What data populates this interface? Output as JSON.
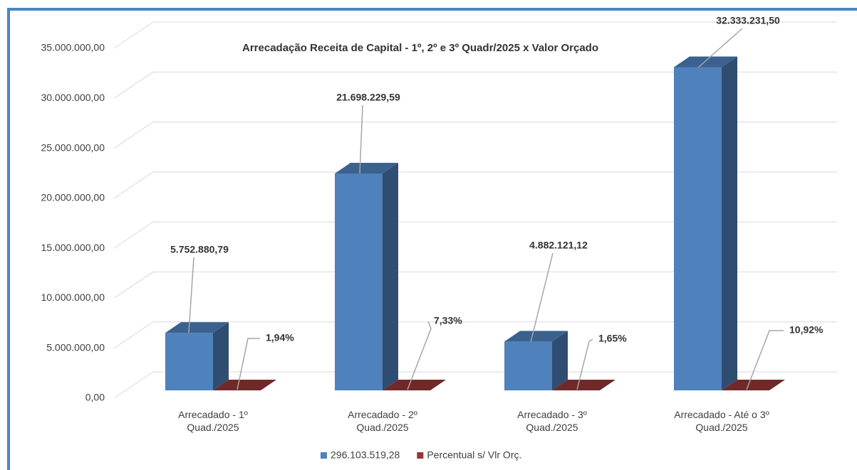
{
  "chart_data": {
    "type": "bar3d",
    "title": "Arrecadação Receita de Capital - 1º, 2º e 3º Quadr/2025 x Valor Orçado",
    "categories": [
      "Arrecadado - 1º Quad./2025",
      "Arrecadado - 2º Quad./2025",
      "Arrecadado - 3º Quad./2025",
      "Arrecadado - Até o 3º Quad./2025"
    ],
    "series": [
      {
        "name": "296.103.519,28",
        "color": "#4f81bd",
        "values": [
          5752880.79,
          21698229.59,
          4882121.12,
          32333231.5
        ],
        "value_labels": [
          "5.752.880,79",
          "21.698.229,59",
          "4.882.121,12",
          "32.333.231,50"
        ]
      },
      {
        "name": "Percentual s/ Vlr Orç.",
        "color": "#953735",
        "values": [
          1.94,
          7.33,
          1.65,
          10.92
        ],
        "value_labels": [
          "1,94%",
          "7,33%",
          "1,65%",
          "10,92%"
        ]
      }
    ],
    "ylim": [
      0,
      35000000
    ],
    "yticks": [
      {
        "value": 0,
        "label": "0,00"
      },
      {
        "value": 5000000,
        "label": "5.000.000,00"
      },
      {
        "value": 10000000,
        "label": "10.000.000,00"
      },
      {
        "value": 15000000,
        "label": "15.000.000,00"
      },
      {
        "value": 20000000,
        "label": "20.000.000,00"
      },
      {
        "value": 25000000,
        "label": "25.000.000,00"
      },
      {
        "value": 30000000,
        "label": "30.000.000,00"
      },
      {
        "value": 35000000,
        "label": "35.000.000,00"
      }
    ],
    "grid": true,
    "legend": "bottom"
  }
}
